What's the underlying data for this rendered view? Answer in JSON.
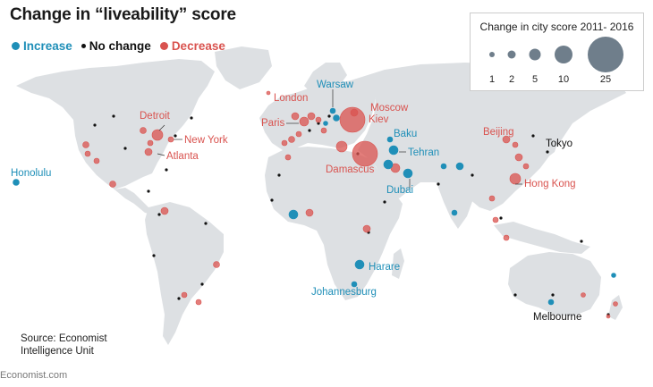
{
  "title": "Change in “liveability” score",
  "legend": {
    "items": [
      {
        "label": "Increase",
        "color": "#1f8fb8"
      },
      {
        "label": "No change",
        "color": "#111111"
      },
      {
        "label": "Decrease",
        "color": "#d9534f"
      }
    ]
  },
  "size_legend": {
    "title": "Change in city score 2011- 2016",
    "values": [
      "1",
      "2",
      "5",
      "10",
      "25"
    ]
  },
  "source": {
    "line1": "Source: Economist",
    "line2": "Intelligence Unit"
  },
  "footer": "Economist.com",
  "colors": {
    "land": "#dde0e3",
    "increase": "#1f8fb8",
    "decrease": "#d9534f",
    "nochange": "#111111",
    "legend_circle": "#6f7e8b"
  },
  "cities_labeled": [
    {
      "name": "Honolulu",
      "change": "increase",
      "size": 2
    },
    {
      "name": "Detroit",
      "change": "decrease",
      "size": 6
    },
    {
      "name": "New York",
      "change": "decrease",
      "size": 2
    },
    {
      "name": "Atlanta",
      "change": "decrease",
      "size": 3
    },
    {
      "name": "London",
      "change": "decrease",
      "size": 3
    },
    {
      "name": "Paris",
      "change": "decrease",
      "size": 4
    },
    {
      "name": "Warsaw",
      "change": "increase",
      "size": 1
    },
    {
      "name": "Moscow",
      "change": "decrease",
      "size": 5
    },
    {
      "name": "Kiev",
      "change": "decrease",
      "size": 25
    },
    {
      "name": "Baku",
      "change": "increase",
      "size": 1
    },
    {
      "name": "Tehran",
      "change": "increase",
      "size": 4
    },
    {
      "name": "Damascus",
      "change": "decrease",
      "size": 25
    },
    {
      "name": "Dubai",
      "change": "increase",
      "size": 3
    },
    {
      "name": "Beijing",
      "change": "decrease",
      "size": 4
    },
    {
      "name": "Tokyo",
      "change": "nochange",
      "size": 0
    },
    {
      "name": "Hong Kong",
      "change": "decrease",
      "size": 4
    },
    {
      "name": "Harare",
      "change": "increase",
      "size": 4
    },
    {
      "name": "Johannesburg",
      "change": "increase",
      "size": 1
    },
    {
      "name": "Melbourne",
      "change": "increase",
      "size": 1
    }
  ]
}
